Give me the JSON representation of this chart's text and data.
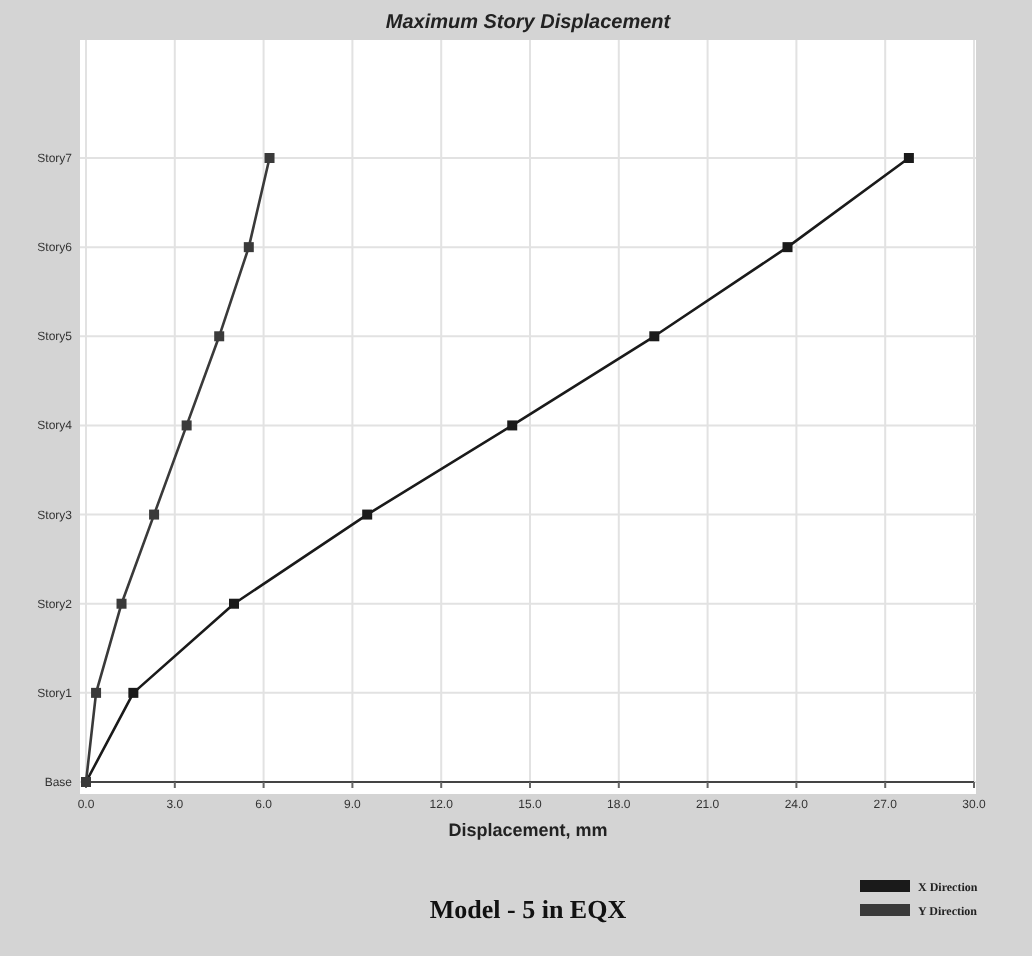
{
  "chart_data": {
    "type": "line",
    "orientation": "horizontal",
    "title": "Maximum Story Displacement",
    "xlabel": "Displacement, mm",
    "annotations": [
      "Model - 5 in EQX"
    ],
    "categories": [
      "Story7",
      "Story6",
      "Story5",
      "Story4",
      "Story3",
      "Story2",
      "Story1",
      "Base"
    ],
    "series": [
      {
        "name": "X Direction",
        "color": "#1a1a1a",
        "values": [
          27.8,
          23.7,
          19.2,
          14.4,
          9.5,
          5.0,
          1.6,
          0
        ]
      },
      {
        "name": "Y Direction",
        "color": "#3a3a3a",
        "values": [
          6.2,
          5.5,
          4.5,
          3.4,
          2.3,
          1.2,
          0.34,
          0
        ]
      }
    ],
    "xlim": [
      0,
      30
    ],
    "xticks": [
      {
        "value": 0,
        "label": "0.0"
      },
      {
        "value": 3,
        "label": "3.0"
      },
      {
        "value": 6,
        "label": "6.0"
      },
      {
        "value": 9,
        "label": "9.0"
      },
      {
        "value": 12,
        "label": "12.0"
      },
      {
        "value": 15,
        "label": "15.0"
      },
      {
        "value": 18,
        "label": "18.0"
      },
      {
        "value": 21,
        "label": "21.0"
      },
      {
        "value": 24,
        "label": "24.0"
      },
      {
        "value": 27,
        "label": "27.0"
      },
      {
        "value": 30,
        "label": "30.0"
      }
    ],
    "grid": true,
    "legend": "bottom right",
    "marker": "square",
    "line_style": "solid"
  }
}
